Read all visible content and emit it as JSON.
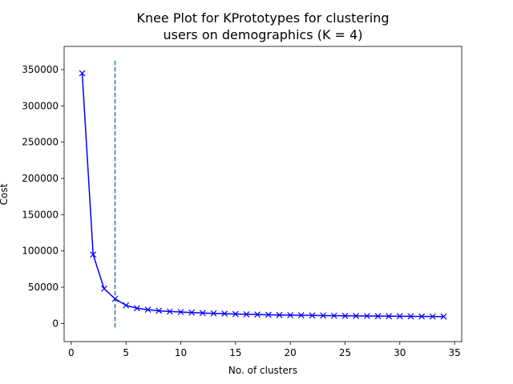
{
  "chart_data": {
    "type": "line",
    "title_lines": [
      "Knee Plot for KPrototypes for clustering",
      "users on demographics (K = 4)"
    ],
    "xlabel": "No. of clusters",
    "ylabel": "Cost",
    "xlim": [
      -0.65,
      35.65
    ],
    "ylim": [
      -25000,
      382000
    ],
    "xticks": [
      0,
      5,
      10,
      15,
      20,
      25,
      30,
      35
    ],
    "yticks": [
      0,
      50000,
      100000,
      150000,
      200000,
      250000,
      300000,
      350000
    ],
    "grid": false,
    "marker": "x",
    "line_color": "#0000ff",
    "knee_color": "#1f77b4",
    "knee": {
      "x": 4,
      "y_range": [
        -5500,
        363000
      ],
      "style": "dashed"
    },
    "series": [
      {
        "x": [
          1,
          2,
          3,
          4,
          5,
          6,
          7,
          8,
          9,
          10,
          11,
          12,
          13,
          14,
          15,
          16,
          17,
          18,
          19,
          20,
          21,
          22,
          23,
          24,
          25,
          26,
          27,
          28,
          29,
          30,
          31,
          32,
          33,
          34
        ],
        "values": [
          345000,
          95000,
          48000,
          34000,
          25000,
          21000,
          19000,
          17500,
          16500,
          15800,
          15000,
          14400,
          13900,
          13500,
          13000,
          12600,
          12300,
          12000,
          11700,
          11500,
          11300,
          11100,
          10900,
          10700,
          10500,
          10400,
          10300,
          10100,
          10000,
          9900,
          9800,
          9700,
          9600,
          9500
        ]
      }
    ]
  }
}
